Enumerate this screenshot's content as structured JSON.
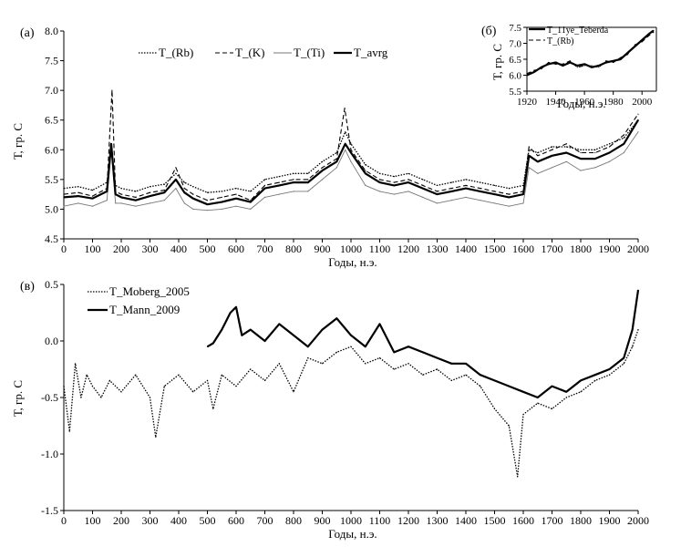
{
  "chart_data": [
    {
      "type": "line",
      "panel_label": "(а)",
      "xlabel": "Годы, н.э.",
      "ylabel": "Т, гр. С",
      "xlim": [
        0,
        2000
      ],
      "ylim": [
        4.5,
        8.0
      ],
      "xticks": [
        "0",
        "100",
        "200",
        "300",
        "400",
        "500",
        "600",
        "700",
        "800",
        "900",
        "1000",
        "1100",
        "1200",
        "1300",
        "1400",
        "1500",
        "1600",
        "1700",
        "1800",
        "1900",
        "2000"
      ],
      "yticks": [
        "4.5",
        "5.0",
        "5.5",
        "6.0",
        "6.5",
        "7.0",
        "7.5",
        "8.0"
      ],
      "grid": false,
      "legend": "top",
      "series": [
        {
          "name": "T_(Rb)",
          "style": "dotted",
          "x": [
            0,
            50,
            100,
            150,
            165,
            180,
            200,
            250,
            300,
            350,
            390,
            420,
            450,
            500,
            550,
            600,
            650,
            700,
            750,
            800,
            850,
            900,
            950,
            980,
            1000,
            1050,
            1100,
            1150,
            1200,
            1250,
            1300,
            1350,
            1400,
            1450,
            1500,
            1550,
            1600,
            1620,
            1650,
            1700,
            1750,
            1800,
            1850,
            1900,
            1950,
            2000
          ],
          "y": [
            5.35,
            5.38,
            5.32,
            5.45,
            6.0,
            5.4,
            5.35,
            5.3,
            5.38,
            5.42,
            5.6,
            5.45,
            5.38,
            5.28,
            5.3,
            5.35,
            5.3,
            5.5,
            5.55,
            5.6,
            5.6,
            5.8,
            5.95,
            6.3,
            6.1,
            5.75,
            5.6,
            5.55,
            5.6,
            5.5,
            5.4,
            5.45,
            5.5,
            5.45,
            5.4,
            5.35,
            5.4,
            6.0,
            5.95,
            6.05,
            6.05,
            6.0,
            6.0,
            6.1,
            6.2,
            6.5
          ]
        },
        {
          "name": "T_(K)",
          "style": "dashed",
          "x": [
            0,
            50,
            100,
            150,
            168,
            180,
            200,
            250,
            300,
            350,
            390,
            420,
            450,
            500,
            550,
            600,
            650,
            700,
            750,
            800,
            850,
            900,
            950,
            978,
            1000,
            1050,
            1100,
            1150,
            1200,
            1250,
            1300,
            1350,
            1400,
            1450,
            1500,
            1550,
            1600,
            1620,
            1650,
            1700,
            1750,
            1800,
            1850,
            1900,
            1950,
            2000
          ],
          "y": [
            5.25,
            5.28,
            5.22,
            5.35,
            7.0,
            5.3,
            5.25,
            5.2,
            5.28,
            5.32,
            5.7,
            5.35,
            5.25,
            5.15,
            5.2,
            5.25,
            5.15,
            5.4,
            5.45,
            5.5,
            5.5,
            5.7,
            5.85,
            6.7,
            6.0,
            5.65,
            5.5,
            5.45,
            5.5,
            5.4,
            5.3,
            5.35,
            5.4,
            5.35,
            5.3,
            5.25,
            5.3,
            6.05,
            5.9,
            6.0,
            6.1,
            5.95,
            5.95,
            6.05,
            6.25,
            6.6
          ]
        },
        {
          "name": "T_(Ti)",
          "style": "thin",
          "x": [
            0,
            50,
            100,
            150,
            165,
            180,
            200,
            250,
            300,
            350,
            390,
            420,
            450,
            500,
            550,
            600,
            650,
            700,
            750,
            800,
            850,
            900,
            950,
            980,
            1000,
            1050,
            1100,
            1150,
            1200,
            1250,
            1300,
            1350,
            1400,
            1450,
            1500,
            1550,
            1600,
            1620,
            1650,
            1700,
            1750,
            1800,
            1850,
            1900,
            1950,
            2000
          ],
          "y": [
            5.05,
            5.1,
            5.05,
            5.15,
            6.0,
            5.1,
            5.1,
            5.05,
            5.1,
            5.15,
            5.35,
            5.1,
            5.0,
            4.98,
            5.0,
            5.05,
            5.0,
            5.2,
            5.25,
            5.3,
            5.3,
            5.5,
            5.7,
            6.0,
            5.8,
            5.4,
            5.3,
            5.25,
            5.3,
            5.2,
            5.1,
            5.15,
            5.2,
            5.15,
            5.1,
            5.05,
            5.1,
            5.7,
            5.6,
            5.7,
            5.8,
            5.65,
            5.7,
            5.8,
            5.95,
            6.3
          ]
        },
        {
          "name": "T_avrg",
          "style": "thick",
          "x": [
            0,
            50,
            100,
            150,
            165,
            180,
            200,
            250,
            300,
            350,
            390,
            420,
            450,
            500,
            550,
            600,
            650,
            700,
            750,
            800,
            850,
            900,
            950,
            980,
            1000,
            1050,
            1100,
            1150,
            1200,
            1250,
            1300,
            1350,
            1400,
            1450,
            1500,
            1550,
            1600,
            1620,
            1650,
            1700,
            1750,
            1800,
            1850,
            1900,
            1950,
            2000
          ],
          "y": [
            5.2,
            5.22,
            5.18,
            5.3,
            6.1,
            5.25,
            5.2,
            5.15,
            5.22,
            5.28,
            5.5,
            5.28,
            5.18,
            5.08,
            5.12,
            5.18,
            5.12,
            5.35,
            5.4,
            5.45,
            5.45,
            5.65,
            5.8,
            6.1,
            5.95,
            5.6,
            5.45,
            5.4,
            5.45,
            5.35,
            5.25,
            5.3,
            5.35,
            5.3,
            5.25,
            5.2,
            5.25,
            5.9,
            5.8,
            5.9,
            5.95,
            5.85,
            5.85,
            5.95,
            6.1,
            6.5
          ]
        }
      ]
    },
    {
      "type": "line",
      "panel_label": "(б)",
      "xlabel": "Годы, н.э.",
      "ylabel": "Т, гр. С",
      "xlim": [
        1920,
        2010
      ],
      "ylim": [
        5.5,
        7.5
      ],
      "xticks": [
        "1920",
        "1940",
        "1960",
        "1980",
        "2000"
      ],
      "yticks": [
        "5.5",
        "6.0",
        "6.5",
        "7.0",
        "7.5"
      ],
      "legend": "top-left",
      "series": [
        {
          "name": "T_11ye_Teberda",
          "style": "thick",
          "x": [
            1920,
            1925,
            1930,
            1935,
            1940,
            1945,
            1950,
            1955,
            1960,
            1965,
            1970,
            1975,
            1980,
            1985,
            1990,
            1995,
            2000,
            2005,
            2008
          ],
          "y": [
            6.0,
            6.1,
            6.25,
            6.35,
            6.4,
            6.3,
            6.4,
            6.3,
            6.35,
            6.25,
            6.3,
            6.4,
            6.45,
            6.5,
            6.7,
            6.9,
            7.1,
            7.3,
            7.4
          ]
        },
        {
          "name": "T_(Rb)",
          "style": "dashed",
          "x": [
            1920,
            1925,
            1930,
            1935,
            1940,
            1945,
            1950,
            1955,
            1960,
            1965,
            1970,
            1975,
            1980,
            1985,
            1990,
            1995,
            2000,
            2005,
            2008
          ],
          "y": [
            6.05,
            6.15,
            6.2,
            6.4,
            6.35,
            6.35,
            6.45,
            6.25,
            6.3,
            6.3,
            6.25,
            6.45,
            6.4,
            6.55,
            6.65,
            6.95,
            7.05,
            7.25,
            7.35
          ]
        }
      ]
    },
    {
      "type": "line",
      "panel_label": "(в)",
      "xlabel": "Годы, н.э.",
      "ylabel": "Т, гр. С",
      "xlim": [
        0,
        2000
      ],
      "ylim": [
        -1.5,
        0.5
      ],
      "xticks": [
        "0",
        "100",
        "200",
        "300",
        "400",
        "500",
        "600",
        "700",
        "800",
        "900",
        "1000",
        "1100",
        "1200",
        "1300",
        "1400",
        "1500",
        "1600",
        "1700",
        "1800",
        "1900",
        "2000"
      ],
      "yticks": [
        "-1.5",
        "-1.0",
        "-0.5",
        "0.0",
        "0.5"
      ],
      "legend": "top-left",
      "series": [
        {
          "name": "T_Moberg_2005",
          "style": "dotted",
          "x": [
            0,
            20,
            40,
            60,
            80,
            100,
            130,
            160,
            200,
            250,
            300,
            320,
            350,
            400,
            450,
            500,
            520,
            550,
            600,
            650,
            700,
            750,
            800,
            850,
            900,
            950,
            1000,
            1050,
            1100,
            1150,
            1200,
            1250,
            1300,
            1350,
            1400,
            1450,
            1500,
            1550,
            1580,
            1600,
            1650,
            1700,
            1750,
            1800,
            1850,
            1900,
            1950,
            1980,
            2000
          ],
          "y": [
            -0.4,
            -0.8,
            -0.2,
            -0.5,
            -0.3,
            -0.4,
            -0.5,
            -0.35,
            -0.45,
            -0.3,
            -0.5,
            -0.85,
            -0.4,
            -0.3,
            -0.45,
            -0.35,
            -0.6,
            -0.3,
            -0.4,
            -0.25,
            -0.35,
            -0.2,
            -0.45,
            -0.15,
            -0.2,
            -0.1,
            -0.05,
            -0.2,
            -0.15,
            -0.25,
            -0.2,
            -0.3,
            -0.25,
            -0.35,
            -0.3,
            -0.4,
            -0.6,
            -0.75,
            -1.2,
            -0.65,
            -0.55,
            -0.6,
            -0.5,
            -0.45,
            -0.35,
            -0.3,
            -0.2,
            -0.05,
            0.1
          ]
        },
        {
          "name": "T_Mann_2009",
          "style": "thick",
          "x": [
            500,
            520,
            550,
            580,
            600,
            620,
            650,
            700,
            750,
            800,
            850,
            900,
            950,
            1000,
            1050,
            1100,
            1150,
            1200,
            1250,
            1300,
            1350,
            1400,
            1450,
            1500,
            1550,
            1600,
            1650,
            1700,
            1750,
            1800,
            1850,
            1900,
            1950,
            1980,
            2000
          ],
          "y": [
            -0.05,
            -0.02,
            0.1,
            0.25,
            0.3,
            0.05,
            0.1,
            0.0,
            0.15,
            0.05,
            -0.05,
            0.1,
            0.2,
            0.05,
            -0.05,
            0.15,
            -0.1,
            -0.05,
            -0.1,
            -0.15,
            -0.2,
            -0.2,
            -0.3,
            -0.35,
            -0.4,
            -0.45,
            -0.5,
            -0.4,
            -0.45,
            -0.35,
            -0.3,
            -0.25,
            -0.15,
            0.1,
            0.45
          ]
        }
      ]
    }
  ]
}
